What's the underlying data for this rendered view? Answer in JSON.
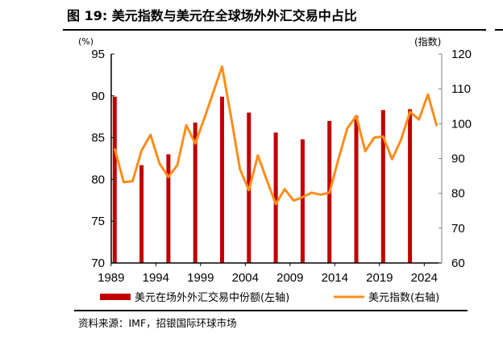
{
  "title": "图 19: 美元指数与美元在全球场外外汇交易中占比",
  "source": "资料来源：IMF，招银国际环球市场",
  "colors": {
    "bar": "#C00000",
    "line": "#FF8C1A",
    "axis": "#000000",
    "right_axis": "#808080"
  },
  "chart_data": {
    "type": "bar+line",
    "title": "图 19: 美元指数与美元在全球场外外汇交易中占比",
    "left_axis": {
      "label": "(%)",
      "ylim": [
        70,
        95
      ],
      "ticks": [
        "70",
        "75",
        "80",
        "85",
        "90",
        "95"
      ]
    },
    "right_axis": {
      "label": "(指数)",
      "ylim": [
        60,
        120
      ],
      "ticks": [
        "60",
        "70",
        "80",
        "90",
        "100",
        "110",
        "120"
      ]
    },
    "x_ticks": [
      "1989",
      "1994",
      "1999",
      "2004",
      "2009",
      "2014",
      "2019",
      "2024"
    ],
    "xlim": [
      1989,
      2025
    ],
    "grid": false,
    "legend_position": "bottom",
    "series": [
      {
        "name": "美元在场外外汇交易中份额(左轴)",
        "type": "bar",
        "axis": "left",
        "x": [
          1989,
          1992,
          1995,
          1998,
          2001,
          2004,
          2007,
          2010,
          2013,
          2016,
          2019,
          2022
        ],
        "values": [
          89.9,
          81.7,
          83.0,
          86.8,
          89.9,
          88.0,
          85.6,
          84.8,
          87.0,
          87.6,
          88.3,
          88.4
        ]
      },
      {
        "name": "美元指数(右轴)",
        "type": "line",
        "axis": "right",
        "x": [
          1989,
          1990,
          1991,
          1992,
          1993,
          1994,
          1995,
          1996,
          1997,
          1998,
          1999,
          2000,
          2001,
          2002,
          2003,
          2004,
          2005,
          2006,
          2007,
          2008,
          2009,
          2010,
          2011,
          2012,
          2013,
          2014,
          2015,
          2016,
          2017,
          2018,
          2019,
          2020,
          2021,
          2022,
          2023,
          2024,
          2025
        ],
        "values": [
          92.9,
          83.2,
          83.5,
          92.3,
          96.8,
          88.6,
          84.7,
          88.1,
          99.6,
          94.3,
          101.4,
          108.9,
          116.4,
          102.0,
          86.9,
          80.9,
          90.9,
          83.8,
          76.9,
          81.2,
          77.9,
          78.9,
          80.2,
          79.6,
          80.2,
          89.8,
          98.7,
          102.2,
          92.1,
          96.0,
          96.3,
          89.8,
          95.4,
          103.4,
          101.2,
          108.4,
          99.3
        ]
      }
    ]
  }
}
